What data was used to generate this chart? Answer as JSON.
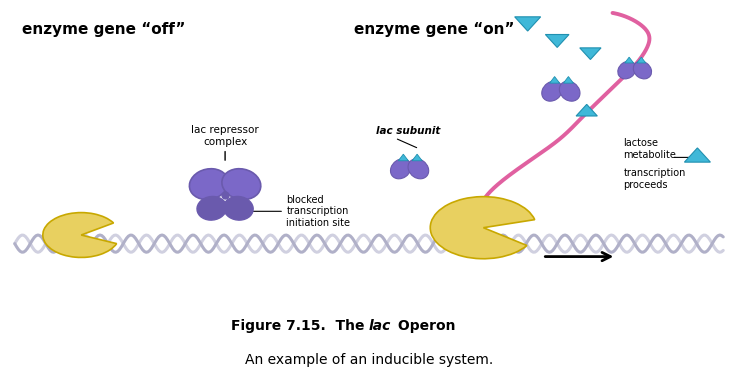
{
  "bg_color": "#f5e6a3",
  "white_bg": "#ffffff",
  "title_text": "Figure 7.15.  The lac Operon",
  "subtitle_text": "An example of an inducible system.",
  "label_off": "enzyme gene “off”",
  "label_on": "enzyme gene “on”",
  "label_repressor": "lac repressor\ncomplex",
  "label_blocked": "blocked\ntranscription\ninitiation site",
  "label_subunit": "lac subunit",
  "label_lactose": "lactose\nmetabolite",
  "label_transcription": "transcription\nproceeds",
  "purple": "#7b68c8",
  "purple_dark": "#6a5aad",
  "yellow": "#e8d060",
  "yellow_light": "#f0dc80",
  "cyan": "#40b8d8",
  "pink": "#e060a0",
  "dna_color1": "#c8c8d8",
  "dna_color2": "#a0a0b8",
  "arrow_color": "#202020",
  "figsize": [
    7.38,
    3.87
  ],
  "dpi": 100
}
